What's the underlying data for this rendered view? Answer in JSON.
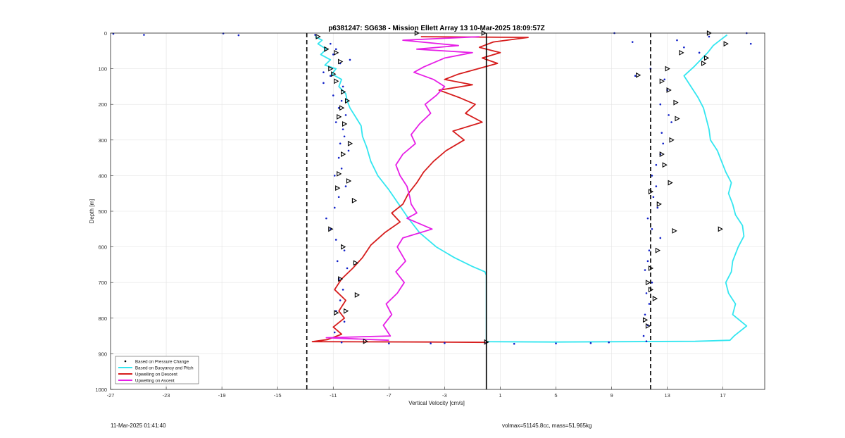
{
  "chart_data": {
    "type": "line",
    "title": "p6381247: SG638 - Mission Ellett Array 13 10-Mar-2025 18:09:57Z",
    "xlabel": "Vertical Velocity [cm/s]",
    "ylabel": "Depth [m]",
    "xlim": [
      -27,
      20
    ],
    "ylim": [
      0,
      1000
    ],
    "y_reversed": true,
    "grid": true,
    "x_ticks": [
      -27,
      -23,
      -19,
      -15,
      -11,
      -7,
      -3,
      1,
      5,
      9,
      13,
      17
    ],
    "y_ticks": [
      0,
      100,
      200,
      300,
      400,
      500,
      600,
      700,
      800,
      900,
      1000
    ],
    "vlines": [
      {
        "x": -12.9,
        "style": "dashed",
        "color": "#000000"
      },
      {
        "x": 0.0,
        "style": "solid",
        "color": "#000000"
      },
      {
        "x": 11.8,
        "style": "dashed",
        "color": "#000000"
      }
    ],
    "legend": {
      "position": "bottom-left",
      "entries": [
        {
          "label": "Based on Pressure Change",
          "color": "#000000",
          "marker": "dot"
        },
        {
          "label": "Based on Buoyancy and Pitch",
          "color": "#33e6f0",
          "marker": "line"
        },
        {
          "label": "Upwelling on Descent",
          "color": "#d61c1c",
          "marker": "line"
        },
        {
          "label": "Upwelling on Ascent",
          "color": "#e61ee6",
          "marker": "line"
        }
      ]
    },
    "series": [
      {
        "name": "Based on Buoyancy and Pitch",
        "color": "#33e6f0",
        "points": [
          [
            -12.3,
            10
          ],
          [
            -11.8,
            20
          ],
          [
            -12.1,
            30
          ],
          [
            -11.5,
            45
          ],
          [
            -11.9,
            60
          ],
          [
            -11.2,
            75
          ],
          [
            -11.6,
            90
          ],
          [
            -10.8,
            100
          ],
          [
            -11.1,
            115
          ],
          [
            -10.4,
            130
          ],
          [
            -10.6,
            150
          ],
          [
            -10.1,
            170
          ],
          [
            -10.0,
            190
          ],
          [
            -9.8,
            210
          ],
          [
            -9.4,
            235
          ],
          [
            -9.0,
            260
          ],
          [
            -8.9,
            290
          ],
          [
            -8.6,
            320
          ],
          [
            -8.3,
            360
          ],
          [
            -7.8,
            400
          ],
          [
            -7.0,
            440
          ],
          [
            -6.3,
            480
          ],
          [
            -5.6,
            520
          ],
          [
            -4.8,
            560
          ],
          [
            -3.6,
            600
          ],
          [
            -2.3,
            630
          ],
          [
            -1.0,
            655
          ],
          [
            -0.1,
            670
          ],
          [
            0.0,
            680
          ],
          [
            0.0,
            750
          ],
          [
            0.0,
            820
          ],
          [
            0.0,
            866
          ],
          [
            5,
            867
          ],
          [
            10,
            866
          ],
          [
            15,
            865
          ],
          [
            17.5,
            862
          ],
          [
            17.8,
            850
          ],
          [
            18.7,
            822
          ],
          [
            17.7,
            790
          ],
          [
            17.9,
            760
          ],
          [
            17.4,
            730
          ],
          [
            17.2,
            700
          ],
          [
            17.6,
            670
          ],
          [
            17.7,
            640
          ],
          [
            18.1,
            600
          ],
          [
            18.5,
            570
          ],
          [
            18.4,
            540
          ],
          [
            17.9,
            510
          ],
          [
            17.7,
            480
          ],
          [
            17.4,
            450
          ],
          [
            17.6,
            420
          ],
          [
            17.2,
            390
          ],
          [
            16.9,
            360
          ],
          [
            16.6,
            330
          ],
          [
            16.1,
            300
          ],
          [
            16.0,
            270
          ],
          [
            15.8,
            240
          ],
          [
            15.6,
            210
          ],
          [
            15.2,
            180
          ],
          [
            14.7,
            150
          ],
          [
            14.2,
            120
          ],
          [
            14.9,
            95
          ],
          [
            15.4,
            75
          ],
          [
            15.9,
            55
          ],
          [
            16.3,
            35
          ],
          [
            16.8,
            20
          ],
          [
            17.3,
            5
          ]
        ]
      },
      {
        "name": "Upwelling on Descent",
        "color": "#d61c1c",
        "points": [
          [
            -4.7,
            10
          ],
          [
            3,
            12
          ],
          [
            0.5,
            25
          ],
          [
            -0.5,
            40
          ],
          [
            1,
            55
          ],
          [
            -0.3,
            70
          ],
          [
            0.8,
            85
          ],
          [
            -0.6,
            100
          ],
          [
            -2.0,
            115
          ],
          [
            -3.0,
            130
          ],
          [
            -1.0,
            145
          ],
          [
            -3.4,
            160
          ],
          [
            -2.0,
            180
          ],
          [
            -0.8,
            200
          ],
          [
            -1.5,
            225
          ],
          [
            -0.3,
            250
          ],
          [
            -2.4,
            275
          ],
          [
            -1.6,
            300
          ],
          [
            -2.9,
            330
          ],
          [
            -3.8,
            360
          ],
          [
            -4.5,
            390
          ],
          [
            -5.0,
            420
          ],
          [
            -5.6,
            450
          ],
          [
            -6.0,
            480
          ],
          [
            -6.8,
            505
          ],
          [
            -6.2,
            530
          ],
          [
            -7.3,
            560
          ],
          [
            -8.3,
            595
          ],
          [
            -8.9,
            630
          ],
          [
            -9.6,
            660
          ],
          [
            -10.4,
            690
          ],
          [
            -10.9,
            720
          ],
          [
            -10.1,
            750
          ],
          [
            -10.6,
            780
          ],
          [
            -10.2,
            800
          ],
          [
            -11.0,
            825
          ],
          [
            -10.4,
            845
          ],
          [
            -11.4,
            860
          ],
          [
            -12.5,
            866
          ],
          [
            -4,
            867
          ],
          [
            0,
            868
          ]
        ]
      },
      {
        "name": "Upwelling on Ascent",
        "color": "#e61ee6",
        "points": [
          [
            -0.5,
            10
          ],
          [
            -6.0,
            20
          ],
          [
            -2.0,
            35
          ],
          [
            -5.0,
            45
          ],
          [
            -1.0,
            55
          ],
          [
            -3.0,
            70
          ],
          [
            -4.5,
            95
          ],
          [
            -5.2,
            110
          ],
          [
            -3.8,
            130
          ],
          [
            -3.0,
            150
          ],
          [
            -3.6,
            175
          ],
          [
            -4.4,
            200
          ],
          [
            -4.0,
            225
          ],
          [
            -4.8,
            255
          ],
          [
            -5.4,
            285
          ],
          [
            -5.1,
            310
          ],
          [
            -6.0,
            340
          ],
          [
            -6.5,
            370
          ],
          [
            -6.2,
            400
          ],
          [
            -5.7,
            430
          ],
          [
            -5.5,
            460
          ],
          [
            -5.4,
            480
          ],
          [
            -5.0,
            505
          ],
          [
            -5.7,
            520
          ],
          [
            -3.9,
            550
          ],
          [
            -6.0,
            575
          ],
          [
            -6.4,
            600
          ],
          [
            -5.8,
            640
          ],
          [
            -6.5,
            670
          ],
          [
            -5.9,
            700
          ],
          [
            -6.4,
            730
          ],
          [
            -7.2,
            760
          ],
          [
            -6.8,
            790
          ],
          [
            -7.4,
            820
          ],
          [
            -6.9,
            850
          ],
          [
            -11.5,
            855
          ],
          [
            -7.0,
            862
          ]
        ]
      },
      {
        "name": "Based on Pressure Change",
        "color": "#1020c8",
        "style": "dots",
        "points": [
          [
            -26.8,
            2
          ],
          [
            -24.6,
            5
          ],
          [
            -18.9,
            1
          ],
          [
            -17.8,
            6
          ],
          [
            -12.3,
            5
          ],
          [
            -11.2,
            30
          ],
          [
            -10.8,
            45
          ],
          [
            -11.0,
            60
          ],
          [
            -9.8,
            75
          ],
          [
            -10.5,
            85
          ],
          [
            -11.7,
            110
          ],
          [
            -11.2,
            120
          ],
          [
            -11.7,
            140
          ],
          [
            -10.3,
            150
          ],
          [
            -11.0,
            175
          ],
          [
            -10.4,
            190
          ],
          [
            -10.6,
            210
          ],
          [
            -10.1,
            230
          ],
          [
            -10.8,
            250
          ],
          [
            -10.3,
            270
          ],
          [
            -10.2,
            290
          ],
          [
            -10.5,
            310
          ],
          [
            -9.9,
            330
          ],
          [
            -10.6,
            350
          ],
          [
            -10.4,
            380
          ],
          [
            -10.9,
            400
          ],
          [
            -10.1,
            430
          ],
          [
            -10.6,
            460
          ],
          [
            -10.9,
            490
          ],
          [
            -11.5,
            520
          ],
          [
            -11.2,
            550
          ],
          [
            -10.8,
            580
          ],
          [
            -10.2,
            610
          ],
          [
            -10.7,
            640
          ],
          [
            -10.0,
            660
          ],
          [
            -10.6,
            690
          ],
          [
            -10.3,
            720
          ],
          [
            -10.5,
            750
          ],
          [
            -10.8,
            780
          ],
          [
            -10.2,
            810
          ],
          [
            -10.9,
            840
          ],
          [
            -10.4,
            868
          ],
          [
            -3,
            870
          ],
          [
            -4,
            871
          ],
          [
            -7,
            871
          ],
          [
            0,
            870
          ],
          [
            2,
            872
          ],
          [
            5,
            871
          ],
          [
            7.5,
            870
          ],
          [
            8.8,
            868
          ],
          [
            9.2,
            0
          ],
          [
            10.5,
            25
          ],
          [
            10.7,
            120
          ],
          [
            11.8,
            100
          ],
          [
            12.8,
            130
          ],
          [
            13.0,
            160
          ],
          [
            12.5,
            200
          ],
          [
            13.1,
            230
          ],
          [
            13.3,
            250
          ],
          [
            12.6,
            280
          ],
          [
            12.7,
            310
          ],
          [
            12.5,
            340
          ],
          [
            12.2,
            370
          ],
          [
            11.9,
            400
          ],
          [
            12.2,
            430
          ],
          [
            12.0,
            460
          ],
          [
            12.3,
            490
          ],
          [
            11.6,
            520
          ],
          [
            11.9,
            550
          ],
          [
            12.5,
            575
          ],
          [
            11.7,
            610
          ],
          [
            11.6,
            640
          ],
          [
            11.4,
            665
          ],
          [
            11.9,
            700
          ],
          [
            11.5,
            730
          ],
          [
            11.7,
            760
          ],
          [
            11.4,
            790
          ],
          [
            11.6,
            820
          ],
          [
            11.3,
            850
          ],
          [
            11.5,
            865
          ],
          [
            13.7,
            20
          ],
          [
            14.2,
            40
          ],
          [
            15.3,
            55
          ],
          [
            16.0,
            10
          ],
          [
            18.7,
            0
          ],
          [
            19.0,
            30
          ]
        ]
      },
      {
        "name": "Triangle markers",
        "color": "#000000",
        "style": "triangles",
        "points": [
          [
            -12.1,
            10
          ],
          [
            -11.5,
            45
          ],
          [
            -10.8,
            55
          ],
          [
            -10.5,
            80
          ],
          [
            -11.2,
            100
          ],
          [
            -11.0,
            115
          ],
          [
            -10.8,
            135
          ],
          [
            -10.3,
            165
          ],
          [
            -10.0,
            190
          ],
          [
            -10.4,
            210
          ],
          [
            -10.6,
            235
          ],
          [
            -10.2,
            255
          ],
          [
            -9.8,
            310
          ],
          [
            -10.3,
            340
          ],
          [
            -10.6,
            395
          ],
          [
            -9.9,
            415
          ],
          [
            -10.7,
            435
          ],
          [
            -9.5,
            470
          ],
          [
            -11.2,
            550
          ],
          [
            -10.3,
            600
          ],
          [
            -9.4,
            645
          ],
          [
            -10.5,
            690
          ],
          [
            -9.3,
            735
          ],
          [
            -10.1,
            780
          ],
          [
            -10.8,
            785
          ],
          [
            -5.0,
            0
          ],
          [
            -0.2,
            0
          ],
          [
            -8.7,
            865
          ],
          [
            0.0,
            867
          ],
          [
            16.0,
            0
          ],
          [
            17.2,
            30
          ],
          [
            14.0,
            55
          ],
          [
            15.8,
            70
          ],
          [
            15.6,
            85
          ],
          [
            13.0,
            100
          ],
          [
            10.9,
            118
          ],
          [
            12.6,
            135
          ],
          [
            13.1,
            160
          ],
          [
            13.6,
            195
          ],
          [
            13.7,
            240
          ],
          [
            13.3,
            300
          ],
          [
            12.6,
            340
          ],
          [
            12.8,
            370
          ],
          [
            13.2,
            420
          ],
          [
            11.8,
            445
          ],
          [
            12.4,
            480
          ],
          [
            13.5,
            555
          ],
          [
            16.8,
            550
          ],
          [
            12.3,
            610
          ],
          [
            11.8,
            660
          ],
          [
            11.6,
            700
          ],
          [
            11.8,
            720
          ],
          [
            12.1,
            745
          ],
          [
            11.4,
            805
          ],
          [
            11.6,
            822
          ]
        ]
      }
    ]
  },
  "footer": {
    "timestamp": "11-Mar-2025 01:41:40",
    "params": "volmax=51145.8cc, mass=51.965kg"
  }
}
